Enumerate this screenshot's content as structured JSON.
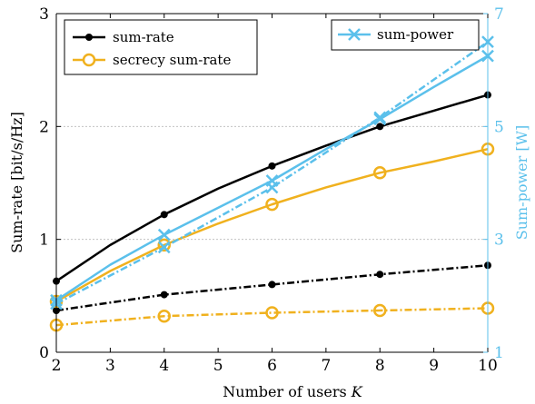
{
  "chart_data": {
    "type": "line",
    "xlabel": "Number of users",
    "xlabel_italic": "K",
    "ylabel_left": "Sum-rate [bit/s/Hz]",
    "ylabel_right": "Sum-power [W]",
    "xlim": [
      2,
      10
    ],
    "ylim_left": [
      0,
      3
    ],
    "ylim_right": [
      1,
      7
    ],
    "x_ticks": [
      2,
      3,
      4,
      5,
      6,
      7,
      8,
      9,
      10
    ],
    "y_ticks_left": [
      0,
      1,
      2,
      3
    ],
    "y_ticks_right": [
      1,
      3,
      5,
      7
    ],
    "grid": "horizontal dashed",
    "legend_left": [
      "sum-rate",
      "secrecy sum-rate"
    ],
    "legend_right": [
      "sum-power"
    ],
    "colors": {
      "sum_rate": "#000000",
      "secrecy": "#f0b11e",
      "power": "#5bc0eb"
    },
    "series": [
      {
        "name": "sum-rate",
        "axis": "left",
        "style": "solid",
        "marker": "dot",
        "color": "#000000",
        "x": [
          2,
          3,
          4,
          5,
          6,
          7,
          8,
          9,
          10
        ],
        "y": [
          0.63,
          0.95,
          1.22,
          1.45,
          1.65,
          1.83,
          2.0,
          2.14,
          2.28
        ],
        "marker_x": [
          2,
          4,
          6,
          8,
          10
        ]
      },
      {
        "name": "sum-rate",
        "axis": "left",
        "style": "dashdot",
        "marker": "dot",
        "color": "#000000",
        "x": [
          2,
          4,
          6,
          8,
          10
        ],
        "y": [
          0.37,
          0.51,
          0.6,
          0.69,
          0.77
        ],
        "marker_x": [
          2,
          4,
          6,
          8,
          10
        ]
      },
      {
        "name": "secrecy sum-rate",
        "axis": "left",
        "style": "solid",
        "marker": "circle",
        "color": "#f0b11e",
        "x": [
          2,
          3,
          4,
          5,
          6,
          7,
          8,
          9,
          10
        ],
        "y": [
          0.45,
          0.72,
          0.95,
          1.14,
          1.31,
          1.46,
          1.59,
          1.69,
          1.8
        ],
        "marker_x": [
          2,
          4,
          6,
          8,
          10
        ]
      },
      {
        "name": "secrecy sum-rate",
        "axis": "left",
        "style": "dashdot",
        "marker": "circle",
        "color": "#f0b11e",
        "x": [
          2,
          4,
          6,
          8,
          10
        ],
        "y": [
          0.24,
          0.32,
          0.35,
          0.37,
          0.39
        ],
        "marker_x": [
          2,
          4,
          6,
          8,
          10
        ]
      },
      {
        "name": "sum-power",
        "axis": "right",
        "style": "solid",
        "marker": "x",
        "color": "#5bc0eb",
        "x": [
          2,
          3,
          4,
          5,
          6,
          7,
          8,
          9,
          10
        ],
        "y": [
          1.92,
          2.55,
          3.08,
          3.56,
          4.04,
          4.6,
          5.13,
          5.7,
          6.25
        ],
        "marker_x": [
          2,
          4,
          6,
          8,
          10
        ]
      },
      {
        "name": "sum-power",
        "axis": "right",
        "style": "dashdot",
        "marker": "x",
        "color": "#5bc0eb",
        "x": [
          2,
          4,
          6,
          8,
          10
        ],
        "y": [
          1.86,
          2.86,
          3.92,
          5.16,
          6.5
        ],
        "marker_x": [
          2,
          4,
          6,
          8,
          10
        ]
      }
    ]
  }
}
